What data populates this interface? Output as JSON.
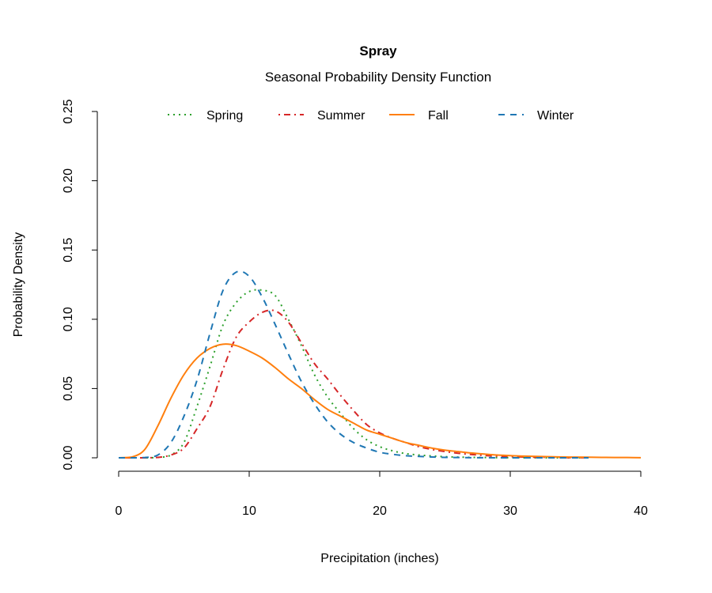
{
  "chart_data": {
    "type": "line",
    "title": "Spray",
    "subtitle": "Seasonal Probability Density Function",
    "xlabel": "Precipitation (inches)",
    "ylabel": "Probability Density",
    "xlim": [
      0,
      40
    ],
    "ylim": [
      0,
      0.25
    ],
    "xticks": [
      0,
      10,
      20,
      30,
      40
    ],
    "xtick_labels": [
      "0",
      "10",
      "20",
      "30",
      "40"
    ],
    "yticks": [
      0,
      0.05,
      0.1,
      0.15,
      0.2,
      0.25
    ],
    "ytick_labels": [
      "0.00",
      "0.05",
      "0.10",
      "0.15",
      "0.20",
      "0.25"
    ],
    "grid": false,
    "legend_position": "top",
    "series": [
      {
        "name": "Spring",
        "color": "#2ca02c",
        "style": "dotted",
        "x": [
          0,
          1,
          2,
          3,
          4,
          5,
          6,
          7,
          8,
          9,
          10,
          11,
          12,
          13,
          14,
          15,
          16,
          17,
          18,
          19,
          20,
          21,
          22,
          23,
          24,
          25,
          26,
          27,
          28,
          29,
          30,
          31,
          32,
          33,
          34,
          35,
          36
        ],
        "y": [
          0,
          0,
          0,
          0.0003,
          0.002,
          0.011,
          0.037,
          0.066,
          0.096,
          0.112,
          0.12,
          0.121,
          0.117,
          0.1,
          0.081,
          0.06,
          0.044,
          0.032,
          0.021,
          0.013,
          0.008,
          0.005,
          0.003,
          0.002,
          0.0013,
          0.0008,
          0.0005,
          0.0003,
          0.0002,
          0.0001,
          0.0001,
          0,
          0,
          0,
          0,
          0,
          0
        ]
      },
      {
        "name": "Summer",
        "color": "#d62728",
        "style": "dotdash",
        "x": [
          0,
          1,
          2,
          3,
          4,
          5,
          6,
          7,
          8,
          9,
          10,
          11,
          12,
          13,
          14,
          15,
          16,
          17,
          18,
          19,
          20,
          21,
          22,
          23,
          24,
          25,
          26,
          27,
          28,
          29,
          30,
          31,
          32,
          33,
          34,
          35,
          36
        ],
        "y": [
          0,
          0,
          0,
          0.0003,
          0.002,
          0.007,
          0.021,
          0.037,
          0.064,
          0.087,
          0.098,
          0.105,
          0.106,
          0.098,
          0.083,
          0.068,
          0.057,
          0.045,
          0.034,
          0.024,
          0.018,
          0.014,
          0.011,
          0.008,
          0.006,
          0.0045,
          0.0033,
          0.0024,
          0.0017,
          0.0012,
          0.0009,
          0.0006,
          0.0004,
          0.0003,
          0.0002,
          0.0001,
          0.0001
        ]
      },
      {
        "name": "Fall",
        "color": "#ff7f0e",
        "style": "solid",
        "x": [
          0,
          1,
          2,
          3,
          4,
          5,
          6,
          7,
          8,
          9,
          10,
          11,
          12,
          13,
          14,
          15,
          16,
          17,
          18,
          19,
          20,
          21,
          22,
          23,
          24,
          25,
          26,
          27,
          28,
          29,
          30,
          31,
          32,
          33,
          34,
          35,
          36,
          37,
          38,
          39,
          40
        ],
        "y": [
          0,
          0.0005,
          0.006,
          0.023,
          0.043,
          0.06,
          0.072,
          0.079,
          0.082,
          0.081,
          0.077,
          0.072,
          0.065,
          0.057,
          0.05,
          0.042,
          0.035,
          0.03,
          0.025,
          0.02,
          0.017,
          0.014,
          0.011,
          0.009,
          0.007,
          0.0055,
          0.0045,
          0.0035,
          0.0027,
          0.002,
          0.0016,
          0.0012,
          0.001,
          0.0008,
          0.0006,
          0.0005,
          0.0004,
          0.0003,
          0.0002,
          0.0002,
          0.0001
        ]
      },
      {
        "name": "Winter",
        "color": "#1f77b4",
        "style": "dashed",
        "x": [
          0,
          1,
          2,
          3,
          4,
          5,
          6,
          7,
          8,
          9,
          10,
          11,
          12,
          13,
          14,
          15,
          16,
          17,
          18,
          19,
          20,
          21,
          22,
          23,
          24,
          25,
          26,
          27,
          28,
          29,
          30,
          31,
          32,
          33,
          34,
          35,
          36
        ],
        "y": [
          0,
          0,
          0.0002,
          0.002,
          0.011,
          0.03,
          0.056,
          0.09,
          0.121,
          0.134,
          0.131,
          0.116,
          0.096,
          0.075,
          0.055,
          0.039,
          0.026,
          0.017,
          0.011,
          0.007,
          0.004,
          0.0025,
          0.0015,
          0.001,
          0.0006,
          0.0003,
          0.0002,
          0.0001,
          0.0001,
          0,
          0,
          0,
          0,
          0,
          0,
          0,
          0
        ]
      }
    ]
  }
}
